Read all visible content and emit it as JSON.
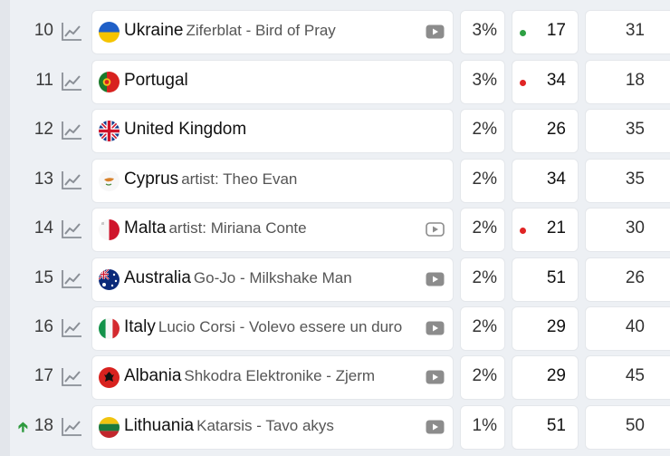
{
  "rows": [
    {
      "rank": "10",
      "country": "Ukraine",
      "artist": "Ziferblat - Bird of Pray",
      "pct": "3%",
      "points": "17",
      "dot": "green",
      "odds": "31",
      "video": true,
      "up": false
    },
    {
      "rank": "11",
      "country": "Portugal",
      "artist": "",
      "pct": "3%",
      "points": "34",
      "dot": "red",
      "odds": "18",
      "video": false,
      "up": false
    },
    {
      "rank": "12",
      "country": "United Kingdom",
      "artist": "",
      "pct": "2%",
      "points": "26",
      "dot": "",
      "odds": "35",
      "video": false,
      "up": false
    },
    {
      "rank": "13",
      "country": "Cyprus",
      "artist": "artist: Theo Evan",
      "pct": "2%",
      "points": "34",
      "dot": "",
      "odds": "35",
      "video": false,
      "up": false
    },
    {
      "rank": "14",
      "country": "Malta",
      "artist": "artist: Miriana Conte",
      "pct": "2%",
      "points": "21",
      "dot": "red",
      "odds": "30",
      "video": true,
      "up": false,
      "video_outline": true
    },
    {
      "rank": "15",
      "country": "Australia",
      "artist": "Go-Jo - Milkshake Man",
      "pct": "2%",
      "points": "51",
      "dot": "",
      "odds": "26",
      "video": true,
      "up": false
    },
    {
      "rank": "16",
      "country": "Italy",
      "artist": "Lucio Corsi - Volevo essere un duro",
      "pct": "2%",
      "points": "29",
      "dot": "",
      "odds": "40",
      "video": true,
      "up": false
    },
    {
      "rank": "17",
      "country": "Albania",
      "artist": "Shkodra Elektronike - Zjerm",
      "pct": "2%",
      "points": "29",
      "dot": "",
      "odds": "45",
      "video": true,
      "up": false
    },
    {
      "rank": "18",
      "country": "Lithuania",
      "artist": "Katarsis - Tavo akys",
      "pct": "1%",
      "points": "51",
      "dot": "",
      "odds": "50",
      "video": true,
      "up": true
    }
  ],
  "colors": {
    "dot_green": "#2ea043",
    "dot_red": "#e02424",
    "trend": "#8a8f96",
    "up_arrow": "#2e9a3e"
  },
  "icons": {
    "trend": "trend-line-icon",
    "video": "video-play-icon",
    "up": "arrow-up-icon"
  }
}
